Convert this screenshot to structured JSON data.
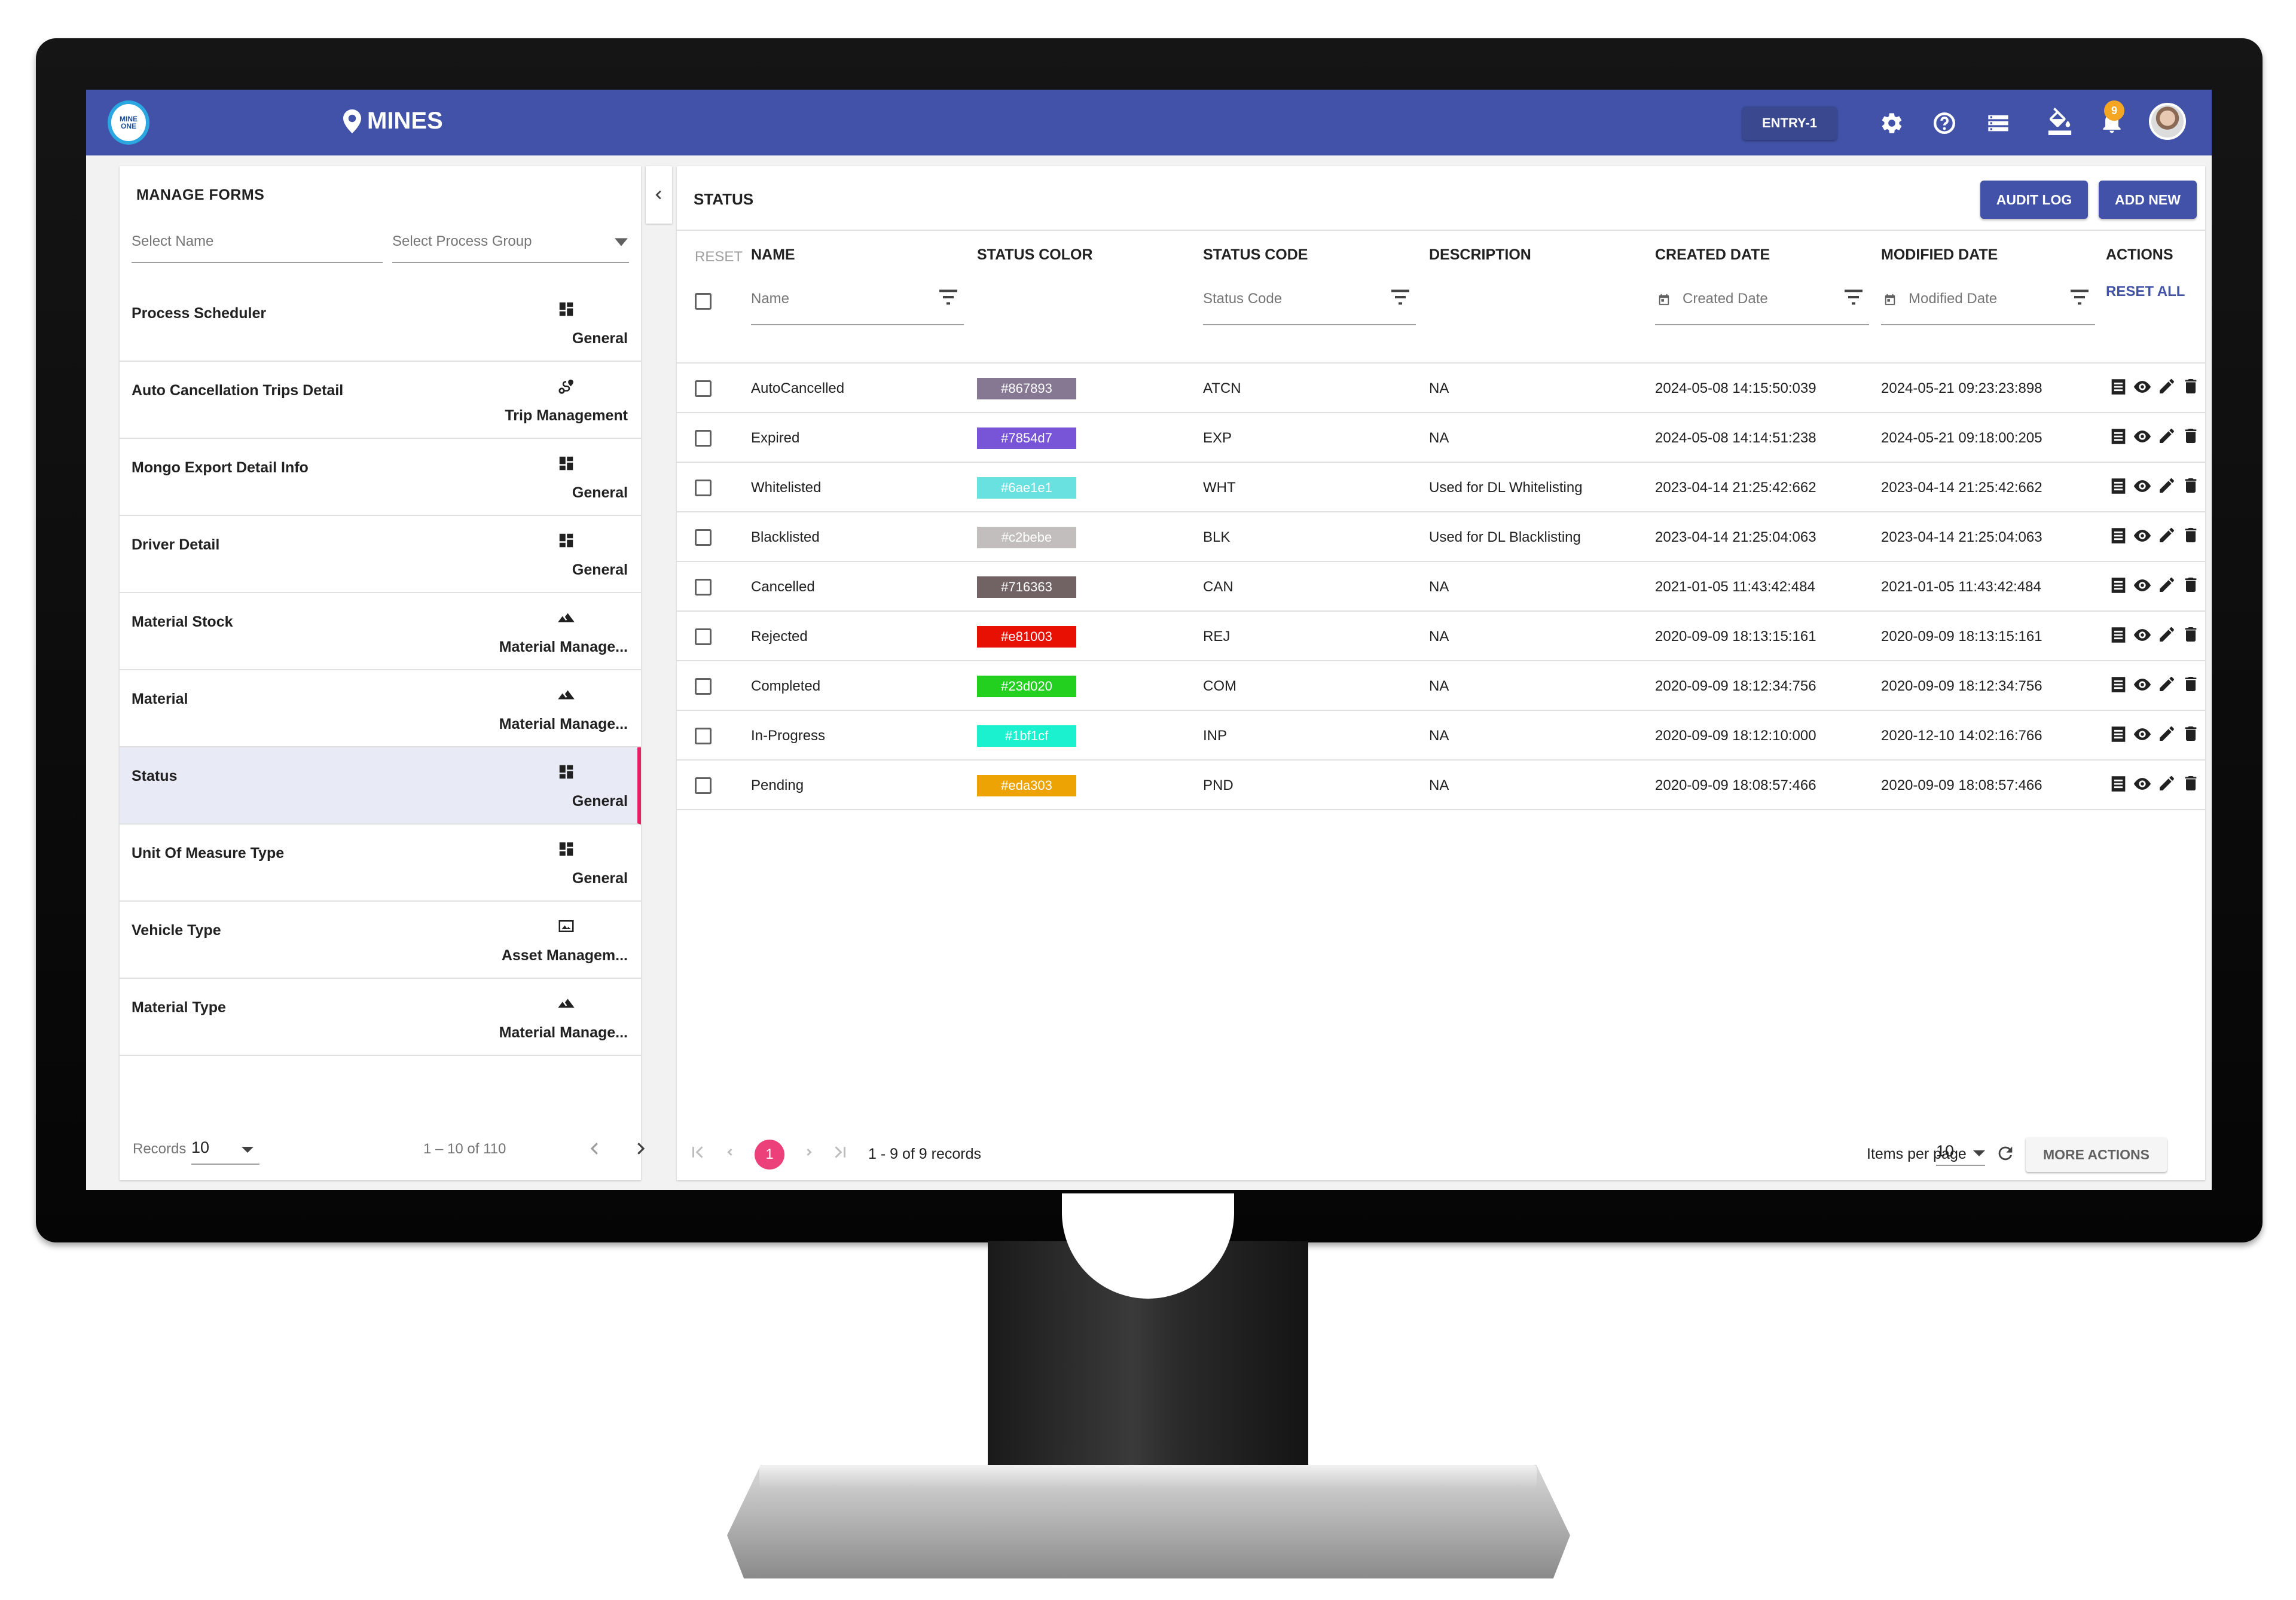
{
  "header": {
    "logo_text": "MINE ONE",
    "site": "MINES",
    "entry": "ENTRY-1",
    "notification_count": "9",
    "icons": [
      "map-pin-icon",
      "settings-icon",
      "help-icon",
      "storage-icon",
      "format-paint-icon",
      "bell-icon",
      "avatar"
    ]
  },
  "left_panel": {
    "title": "MANAGE FORMS",
    "select_name_placeholder": "Select Name",
    "select_group_placeholder": "Select Process Group",
    "forms": [
      {
        "name": "Process Scheduler",
        "group": "General",
        "icon": "dashboard-icon"
      },
      {
        "name": "Auto Cancellation Trips Detail",
        "group": "Trip Management",
        "icon": "route-icon"
      },
      {
        "name": "Mongo Export Detail Info",
        "group": "General",
        "icon": "dashboard-icon"
      },
      {
        "name": "Driver Detail",
        "group": "General",
        "icon": "dashboard-icon"
      },
      {
        "name": "Material Stock",
        "group": "Material Manage...",
        "icon": "terrain-icon"
      },
      {
        "name": "Material",
        "group": "Material Manage...",
        "icon": "terrain-icon"
      },
      {
        "name": "Status",
        "group": "General",
        "icon": "dashboard-icon",
        "active": true
      },
      {
        "name": "Unit Of Measure Type",
        "group": "General",
        "icon": "dashboard-icon"
      },
      {
        "name": "Vehicle Type",
        "group": "Asset Managem...",
        "icon": "image-icon"
      },
      {
        "name": "Material Type",
        "group": "Material Manage...",
        "icon": "terrain-icon"
      }
    ],
    "records_label": "Records",
    "records_value": "10",
    "range": "1 – 10 of 110"
  },
  "main": {
    "title": "STATUS",
    "audit_log": "AUDIT LOG",
    "add_new": "ADD NEW",
    "reset": "RESET",
    "reset_all": "RESET ALL",
    "columns": [
      "NAME",
      "STATUS COLOR",
      "STATUS CODE",
      "DESCRIPTION",
      "CREATED DATE",
      "MODIFIED DATE",
      "ACTIONS"
    ],
    "filters": {
      "name": "Name",
      "status_code": "Status Code",
      "created_date": "Created Date",
      "modified_date": "Modified Date"
    },
    "rows": [
      {
        "name": "AutoCancelled",
        "color": "#867893",
        "code": "ATCN",
        "description": "NA",
        "created": "2024-05-08 14:15:50:039",
        "modified": "2024-05-21 09:23:23:898"
      },
      {
        "name": "Expired",
        "color": "#7854d7",
        "code": "EXP",
        "description": "NA",
        "created": "2024-05-08 14:14:51:238",
        "modified": "2024-05-21 09:18:00:205"
      },
      {
        "name": "Whitelisted",
        "color": "#6ae1e1",
        "code": "WHT",
        "description": "Used for DL Whitelisting",
        "created": "2023-04-14 21:25:42:662",
        "modified": "2023-04-14 21:25:42:662"
      },
      {
        "name": "Blacklisted",
        "color": "#c2bebe",
        "code": "BLK",
        "description": "Used for DL Blacklisting",
        "created": "2023-04-14 21:25:04:063",
        "modified": "2023-04-14 21:25:04:063"
      },
      {
        "name": "Cancelled",
        "color": "#716363",
        "code": "CAN",
        "description": "NA",
        "created": "2021-01-05 11:43:42:484",
        "modified": "2021-01-05 11:43:42:484"
      },
      {
        "name": "Rejected",
        "color": "#e81003",
        "code": "REJ",
        "description": "NA",
        "created": "2020-09-09 18:13:15:161",
        "modified": "2020-09-09 18:13:15:161"
      },
      {
        "name": "Completed",
        "color": "#23d020",
        "code": "COM",
        "description": "NA",
        "created": "2020-09-09 18:12:34:756",
        "modified": "2020-09-09 18:12:34:756"
      },
      {
        "name": "In-Progress",
        "color": "#1bf1cf",
        "code": "INP",
        "description": "NA",
        "created": "2020-09-09 18:12:10:000",
        "modified": "2020-12-10 14:02:16:766"
      },
      {
        "name": "Pending",
        "color": "#eda303",
        "code": "PND",
        "description": "NA",
        "created": "2020-09-09 18:08:57:466",
        "modified": "2020-09-09 18:08:57:466"
      }
    ],
    "footer": {
      "current_page": "1",
      "range": "1 - 9 of 9 records",
      "items_per_page_label": "Items per page",
      "items_per_page": "10",
      "more_actions": "MORE ACTIONS"
    }
  },
  "colors": {
    "primary": "#4252a8",
    "accent": "#e91e63",
    "active_row": "#e8eaf6",
    "notification": "#f5a623"
  }
}
